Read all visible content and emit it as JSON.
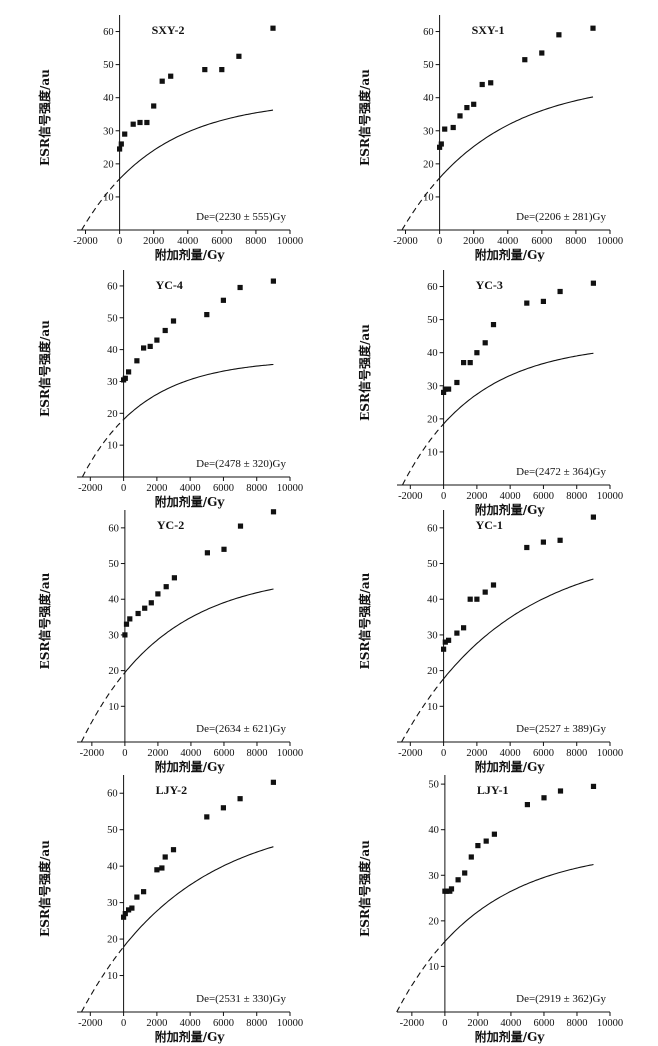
{
  "x_axis_label": "附加剂量/Gy",
  "y_axis_label": "ESR信号强度/au",
  "chart_data": [
    {
      "type": "scatter",
      "title": "SXY-2",
      "de_label": "De=(2230 ± 555)Gy",
      "xlabel": "附加剂量/Gy",
      "ylabel": "ESR信号强度/au",
      "xlim": [
        -2500,
        10000
      ],
      "ylim": [
        0,
        65
      ],
      "xticks": [
        -2000,
        0,
        2000,
        4000,
        6000,
        8000,
        10000
      ],
      "yticks": [
        10,
        20,
        30,
        40,
        50,
        60
      ],
      "x": [
        0,
        100,
        300,
        800,
        1200,
        1600,
        2000,
        2500,
        3000,
        5000,
        6000,
        7000,
        9000
      ],
      "y": [
        24.5,
        26,
        29,
        32,
        32.5,
        32.5,
        37.5,
        45,
        46.5,
        48.5,
        48.5,
        52.5,
        61
      ],
      "fit": {
        "model": "saturating_exponential",
        "a": 39.5,
        "b": 2230,
        "c": 4500,
        "x_start": -2230,
        "x_end": 9000,
        "dashed_until": 0
      }
    },
    {
      "type": "scatter",
      "title": "SXY-1",
      "de_label": "De=(2206 ± 281)Gy",
      "xlabel": "附加剂量/Gy",
      "ylabel": "ESR信号强度/au",
      "xlim": [
        -2500,
        10000
      ],
      "ylim": [
        0,
        65
      ],
      "xticks": [
        -2000,
        0,
        2000,
        4000,
        6000,
        8000,
        10000
      ],
      "yticks": [
        10,
        20,
        30,
        40,
        50,
        60
      ],
      "x": [
        0,
        100,
        300,
        800,
        1200,
        1600,
        2000,
        2500,
        3000,
        5000,
        6000,
        7000,
        9000
      ],
      "y": [
        25,
        26,
        30.5,
        31,
        34.5,
        37,
        38,
        44,
        44.5,
        51.5,
        53.5,
        59,
        61
      ],
      "fit": {
        "model": "saturating_exponential",
        "a": 45.5,
        "b": 2206,
        "c": 5200,
        "x_start": -2206,
        "x_end": 9000,
        "dashed_until": 0
      }
    },
    {
      "type": "scatter",
      "title": "YC-4",
      "de_label": "De=(2478 ± 320)Gy",
      "xlabel": "附加剂量/Gy",
      "ylabel": "ESR信号强度/au",
      "xlim": [
        -2800,
        10000
      ],
      "ylim": [
        0,
        65
      ],
      "xticks": [
        -2000,
        0,
        2000,
        4000,
        6000,
        8000,
        10000
      ],
      "yticks": [
        10,
        20,
        30,
        40,
        50,
        60
      ],
      "x": [
        0,
        100,
        300,
        800,
        1200,
        1600,
        2000,
        2500,
        3000,
        5000,
        6000,
        7000,
        9000
      ],
      "y": [
        30.5,
        31,
        33,
        36.5,
        40.5,
        41,
        43,
        46,
        49,
        51,
        55.5,
        59.5,
        61.5
      ],
      "fit": {
        "model": "saturating_exponential",
        "a": 37,
        "b": 2478,
        "c": 3700,
        "x_start": -2478,
        "x_end": 9000,
        "dashed_until": 0
      }
    },
    {
      "type": "scatter",
      "title": "YC-3",
      "de_label": "De=(2472 ± 364)Gy",
      "xlabel": "附加剂量/Gy",
      "ylabel": "ESR信号强度/au",
      "xlim": [
        -2800,
        10000
      ],
      "ylim": [
        0,
        65
      ],
      "xticks": [
        -2000,
        0,
        2000,
        4000,
        6000,
        8000,
        10000
      ],
      "yticks": [
        10,
        20,
        30,
        40,
        50,
        60
      ],
      "x": [
        0,
        100,
        300,
        800,
        1200,
        1600,
        2000,
        2500,
        3000,
        5000,
        6000,
        7000,
        9000
      ],
      "y": [
        28,
        29,
        29,
        31,
        37,
        37,
        40,
        43,
        48.5,
        55,
        55.5,
        58.5,
        61
      ],
      "fit": {
        "model": "saturating_exponential",
        "a": 43,
        "b": 2472,
        "c": 4400,
        "x_start": -2472,
        "x_end": 9000,
        "dashed_until": 0
      }
    },
    {
      "type": "scatter",
      "title": "YC-2",
      "de_label": "De=(2634 ± 621)Gy",
      "xlabel": "附加剂量/Gy",
      "ylabel": "ESR信号强度/au",
      "xlim": [
        -2900,
        10000
      ],
      "ylim": [
        0,
        65
      ],
      "xticks": [
        -2000,
        0,
        2000,
        4000,
        6000,
        8000,
        10000
      ],
      "yticks": [
        10,
        20,
        30,
        40,
        50,
        60
      ],
      "x": [
        0,
        100,
        300,
        800,
        1200,
        1600,
        2000,
        2500,
        3000,
        5000,
        6000,
        7000,
        9000
      ],
      "y": [
        30,
        33,
        34.5,
        36,
        37.5,
        39,
        41.5,
        43.5,
        46,
        53,
        54,
        60.5,
        64.5
      ],
      "fit": {
        "model": "saturating_exponential",
        "a": 47.5,
        "b": 2634,
        "c": 5000,
        "x_start": -2634,
        "x_end": 9000,
        "dashed_until": 0
      }
    },
    {
      "type": "scatter",
      "title": "YC-1",
      "de_label": "De=(2527 ± 389)Gy",
      "xlabel": "附加剂量/Gy",
      "ylabel": "ESR信号强度/au",
      "xlim": [
        -2800,
        10000
      ],
      "ylim": [
        0,
        65
      ],
      "xticks": [
        -2000,
        0,
        2000,
        4000,
        6000,
        8000,
        10000
      ],
      "yticks": [
        10,
        20,
        30,
        40,
        50,
        60
      ],
      "x": [
        0,
        100,
        300,
        800,
        1200,
        1600,
        2000,
        2500,
        3000,
        5000,
        6000,
        7000,
        9000
      ],
      "y": [
        26,
        28,
        28.5,
        30.5,
        32,
        40,
        40,
        42,
        44,
        54.5,
        56,
        56.5,
        63
      ],
      "fit": {
        "model": "saturating_exponential",
        "a": 55,
        "b": 2527,
        "c": 6500,
        "x_start": -2527,
        "x_end": 9000,
        "dashed_until": 0
      }
    },
    {
      "type": "scatter",
      "title": "LJY-2",
      "de_label": "De=(2531 ± 330)Gy",
      "xlabel": "附加剂量/Gy",
      "ylabel": "ESR信号强度/au",
      "xlim": [
        -2800,
        10000
      ],
      "ylim": [
        0,
        65
      ],
      "xticks": [
        -2000,
        0,
        2000,
        4000,
        6000,
        8000,
        10000
      ],
      "yticks": [
        10,
        20,
        30,
        40,
        50,
        60
      ],
      "x": [
        0,
        100,
        300,
        500,
        800,
        1200,
        2000,
        2300,
        2500,
        3000,
        5000,
        6000,
        7000,
        9000
      ],
      "y": [
        26,
        27,
        28,
        28.5,
        31.5,
        33,
        39,
        39.5,
        42.5,
        44.5,
        53.5,
        56,
        58.5,
        63
      ],
      "fit": {
        "model": "saturating_exponential",
        "a": 54,
        "b": 2531,
        "c": 6300,
        "x_start": -2531,
        "x_end": 9000,
        "dashed_until": 0
      }
    },
    {
      "type": "scatter",
      "title": "LJY-1",
      "de_label": "De=(2919 ± 362)Gy",
      "xlabel": "附加剂量/Gy",
      "ylabel": "ESR信号强度/au",
      "xlim": [
        -2900,
        10000
      ],
      "ylim": [
        0,
        52
      ],
      "xticks": [
        -2000,
        0,
        2000,
        4000,
        6000,
        8000,
        10000
      ],
      "yticks": [
        10,
        20,
        30,
        40,
        50
      ],
      "x": [
        0,
        100,
        300,
        400,
        800,
        1200,
        1600,
        2000,
        2500,
        3000,
        5000,
        6000,
        7000,
        9000
      ],
      "y": [
        26.5,
        26.5,
        26.5,
        27,
        29,
        30.5,
        34,
        36.5,
        37.5,
        39,
        45.5,
        47,
        48.5,
        49.5
      ],
      "fit": {
        "model": "saturating_exponential",
        "a": 36,
        "b": 2919,
        "c": 5200,
        "x_start": -2919,
        "x_end": 9000,
        "dashed_until": 0
      }
    }
  ]
}
